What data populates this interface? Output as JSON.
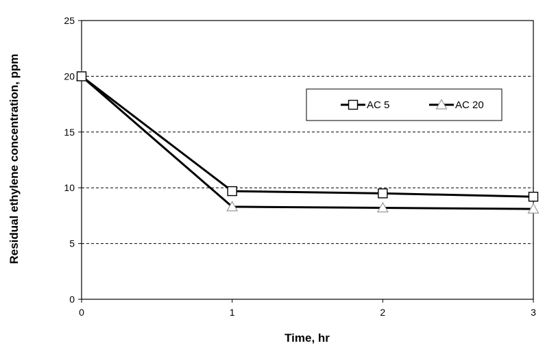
{
  "chart_data": {
    "type": "line",
    "title": "",
    "xlabel": "Time, hr",
    "ylabel": "Residual ethylene concentration, ppm",
    "xlim": [
      0,
      3
    ],
    "ylim": [
      0,
      25
    ],
    "x_ticks": [
      "0",
      "1",
      "2",
      "3"
    ],
    "y_ticks": [
      "0",
      "5",
      "10",
      "15",
      "20",
      "25"
    ],
    "grid": "horizontal dashed",
    "legend_position": "upper-right inside plot",
    "x": [
      0,
      1,
      2,
      3
    ],
    "series": [
      {
        "name": "AC 5",
        "marker": "square",
        "color": "#000000",
        "values": [
          20.0,
          9.7,
          9.5,
          9.2
        ]
      },
      {
        "name": "AC 20",
        "marker": "triangle",
        "color": "#000000",
        "values": [
          20.0,
          8.3,
          8.2,
          8.1
        ]
      }
    ]
  }
}
